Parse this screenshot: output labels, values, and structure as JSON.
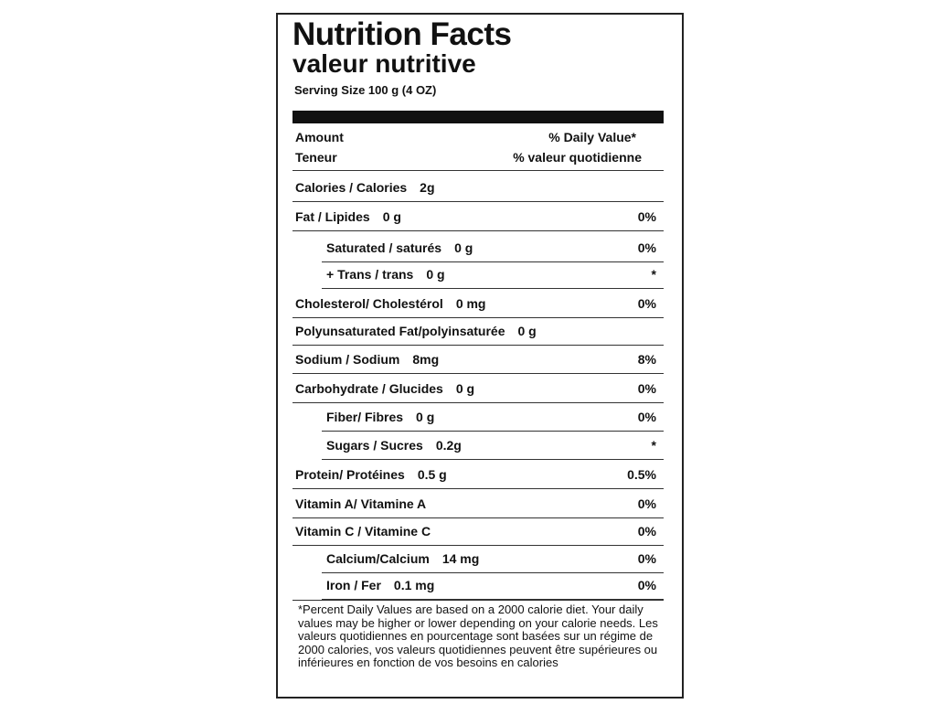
{
  "label": {
    "title": "Nutrition Facts",
    "subtitle": "valeur nutritive",
    "serving": "Serving Size 100 g (4 OZ)",
    "header": {
      "amount": "Amount",
      "daily_value": "% Daily Value*",
      "amount_fr": "Teneur",
      "daily_value_fr": "% valeur quotidienne"
    },
    "rows": [
      {
        "label": "Calories / Calories",
        "amount": "2g",
        "level": 0
      },
      {
        "label": "Fat / Lipides",
        "amount": "0 g",
        "dv": "0%",
        "level": 0
      },
      {
        "label": "Saturated / saturés",
        "amount": "0 g",
        "dv": "0%",
        "level": 1
      },
      {
        "label": "+ Trans / trans",
        "amount": "0 g",
        "dv": "*",
        "level": 1
      },
      {
        "label": "Cholesterol/ Cholestérol",
        "amount": "0 mg",
        "dv": "0%",
        "level": 0
      },
      {
        "label": "Polyunsaturated Fat/polyinsaturée",
        "amount": "0 g",
        "level": 0
      },
      {
        "label": "Sodium / Sodium",
        "amount": "8mg",
        "dv": "8%",
        "level": 0
      },
      {
        "label": "Carbohydrate / Glucides",
        "amount": "0 g",
        "dv": "0%",
        "level": 0
      },
      {
        "label": "Fiber/ Fibres",
        "amount": "0 g",
        "dv": "0%",
        "level": 1
      },
      {
        "label": "Sugars / Sucres",
        "amount": "0.2g",
        "dv": "*",
        "level": 1
      },
      {
        "label": "Protein/ Protéines",
        "amount": "0.5 g",
        "dv": "0.5%",
        "level": 0
      },
      {
        "label": "Vitamin A/ Vitamine A",
        "dv": "0%",
        "level": 0
      },
      {
        "label": "Vitamin C / Vitamine C",
        "dv": "0%",
        "level": 0
      },
      {
        "label": "Calcium/Calcium",
        "amount": "14 mg",
        "dv": "0%",
        "level": 1
      },
      {
        "label": "Iron / Fer",
        "amount": "0.1 mg",
        "dv": "0%",
        "level": 1
      }
    ],
    "footnote": "*Percent Daily Values are based on a 2000 calorie diet. Your daily values may be higher or lower depending on your calorie needs. Les valeurs quotidiennes en pourcentage sont basées sur un régime de 2000 calories, vos valeurs quotidiennes peuvent être supérieures ou inférieures en fonction de vos besoins en calories"
  }
}
